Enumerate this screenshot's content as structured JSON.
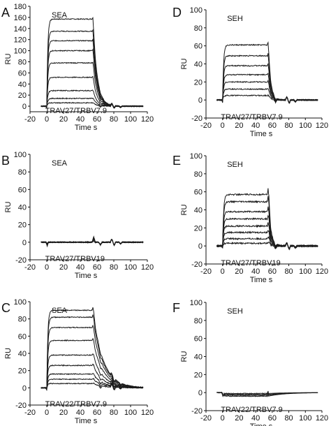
{
  "colors": {
    "curve": "#1a1a1a",
    "axis": "#111111",
    "background": "#ffffff"
  },
  "x_axis_shared": {
    "label": "Time  s",
    "range": [
      -20,
      120
    ],
    "ticks": [
      -20,
      0,
      20,
      40,
      60,
      80,
      100,
      120
    ]
  },
  "chart_data": [
    {
      "type": "line",
      "panel": "A",
      "reagent": "SEA",
      "construct": "TRAV27/TRBV7.9",
      "ylabel": "RU",
      "xlabel": "Time  s",
      "xlim": [
        -20,
        120
      ],
      "ylim": [
        -10,
        180
      ],
      "yticks": [
        0,
        20,
        40,
        60,
        80,
        100,
        120,
        140,
        160,
        180
      ],
      "xticks": [
        -20,
        0,
        20,
        40,
        60,
        80,
        100,
        120
      ],
      "injection": {
        "start": 0,
        "end": 55,
        "decay_time": 5
      },
      "plateaus": [
        157,
        135,
        118,
        100,
        78,
        52,
        28,
        14,
        6
      ],
      "noise": 0.8
    },
    {
      "type": "line",
      "panel": "B",
      "reagent": "SEA",
      "construct": "TRAV27/TRBV19",
      "ylabel": "RU",
      "xlabel": "Time  s",
      "xlim": [
        -20,
        120
      ],
      "ylim": [
        -20,
        100
      ],
      "yticks": [
        -20,
        0,
        20,
        40,
        60,
        80,
        100
      ],
      "xticks": [
        -20,
        0,
        20,
        40,
        60,
        80,
        100,
        120
      ],
      "injection": {
        "start": 0,
        "end": 55,
        "decay_time": 5
      },
      "plateaus": [
        0,
        0,
        0,
        0,
        0
      ],
      "noise": 0.6
    },
    {
      "type": "line",
      "panel": "C",
      "reagent": "SEA",
      "construct": "TRAV22/TRBV7.9",
      "ylabel": "RU",
      "xlabel": "Time  s",
      "xlim": [
        -20,
        120
      ],
      "ylim": [
        -20,
        100
      ],
      "yticks": [
        -20,
        0,
        20,
        40,
        60,
        80,
        100
      ],
      "xticks": [
        -20,
        0,
        20,
        40,
        60,
        80,
        100,
        120
      ],
      "injection": {
        "start": 0,
        "end": 55,
        "decay_time": 12
      },
      "plateaus": [
        90,
        82,
        70,
        55,
        38,
        26,
        16,
        10,
        5
      ],
      "noise": 0.5
    },
    {
      "type": "line",
      "panel": "D",
      "reagent": "SEH",
      "construct": "TRAV27/TRBV7.9",
      "ylabel": "RU",
      "xlabel": "Time  s",
      "xlim": [
        -20,
        120
      ],
      "ylim": [
        -20,
        100
      ],
      "yticks": [
        -20,
        0,
        20,
        40,
        60,
        80,
        100
      ],
      "xticks": [
        -20,
        0,
        20,
        40,
        60,
        80,
        100,
        120
      ],
      "injection": {
        "start": 0,
        "end": 55,
        "decay_time": 3
      },
      "plateaus": [
        61,
        49,
        38,
        28,
        20,
        12,
        5
      ],
      "noise": 0.6
    },
    {
      "type": "line",
      "panel": "E",
      "reagent": "SEH",
      "construct": "TRAV27/TRBV19",
      "ylabel": "RU",
      "xlabel": "Time  s",
      "xlim": [
        -20,
        120
      ],
      "ylim": [
        -20,
        100
      ],
      "yticks": [
        -20,
        0,
        20,
        40,
        60,
        80,
        100
      ],
      "xticks": [
        -20,
        0,
        20,
        40,
        60,
        80,
        100,
        120
      ],
      "injection": {
        "start": 0,
        "end": 55,
        "decay_time": 3
      },
      "plateaus": [
        57,
        49,
        38,
        30,
        22,
        15,
        8,
        3
      ],
      "noise": 0.8
    },
    {
      "type": "line",
      "panel": "F",
      "reagent": "SEH",
      "construct": "TRAV22/TRBV7.9",
      "ylabel": "RU",
      "xlabel": "Time  s",
      "xlim": [
        -20,
        120
      ],
      "ylim": [
        -20,
        100
      ],
      "yticks": [
        -20,
        0,
        20,
        40,
        60,
        80,
        100
      ],
      "xticks": [
        -20,
        0,
        20,
        40,
        60,
        80,
        100,
        120
      ],
      "injection": {
        "start": 0,
        "end": 55,
        "decay_time": 3
      },
      "plateaus": [
        -1,
        -2,
        -3,
        -4
      ],
      "noise": 0.4
    }
  ]
}
